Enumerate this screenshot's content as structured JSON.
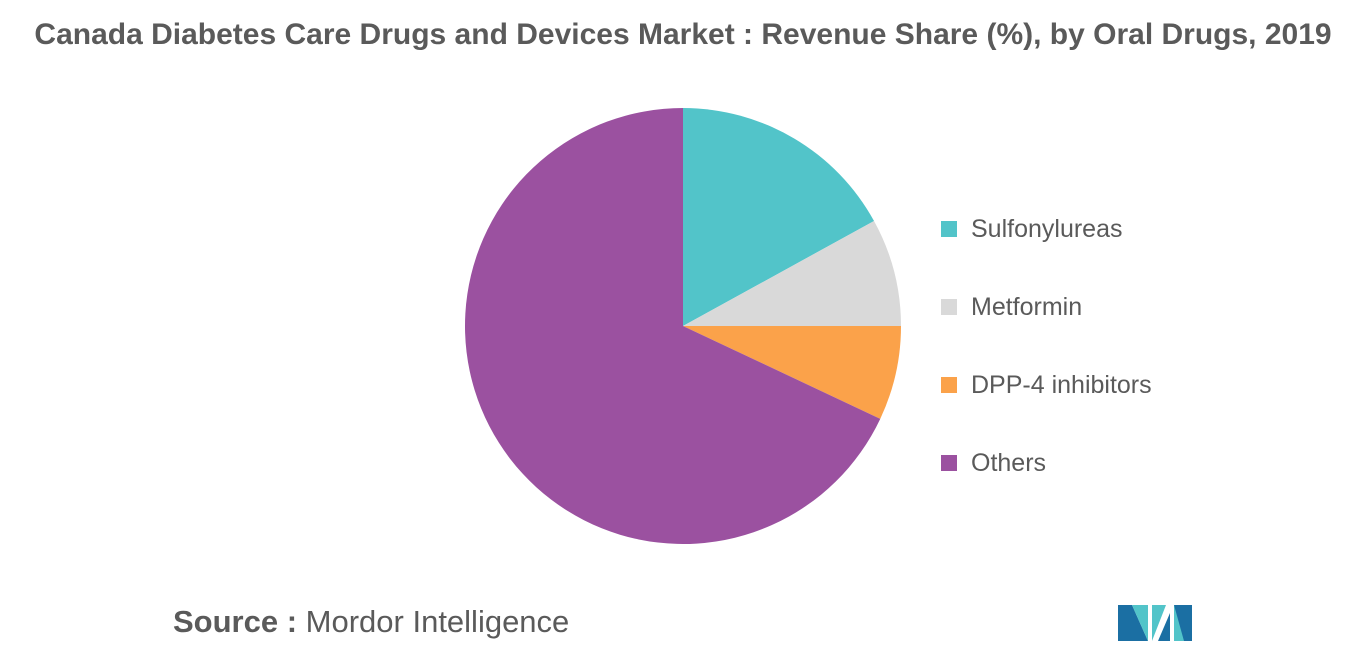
{
  "chart_data": {
    "type": "pie",
    "title": "Canada Diabetes Care Drugs and Devices Market : Revenue Share (%), by Oral Drugs, 2019",
    "categories": [
      "Sulfonylureas",
      "Metformin",
      "DPP-4 inhibitors",
      "Others"
    ],
    "values": [
      17,
      8,
      7,
      68
    ],
    "colors": [
      "#52c4c9",
      "#d9d9d9",
      "#fba24a",
      "#9b51a0"
    ],
    "legend_placement": "right"
  },
  "source": {
    "label": "Source :",
    "value": "Mordor Intelligence"
  },
  "logo": {
    "icon": "mordor-intelligence-logo-icon",
    "colors": [
      "#1b6fa3",
      "#52c4c9"
    ]
  }
}
